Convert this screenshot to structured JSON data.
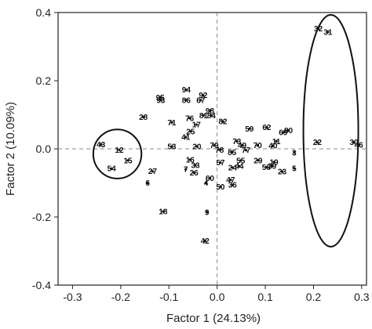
{
  "chart_data": {
    "type": "scatter",
    "title": "",
    "xlabel": "Factor 1 (24.13%)",
    "ylabel": "Factor 2 (10.09%)",
    "xlim": [
      -0.33,
      0.31
    ],
    "ylim": [
      -0.4,
      0.4
    ],
    "xticks": [
      "-0.3",
      "-0.2",
      "-0.1",
      "0.0",
      "0.1",
      "0.2",
      "0.3"
    ],
    "yticks": [
      "0.4",
      "0.2",
      "0.0",
      "-0.2",
      "-0.4"
    ],
    "grid": false,
    "reference_lines": {
      "x": 0,
      "y": 0,
      "style": "dashed"
    },
    "points": [
      {
        "label": "43",
        "x": -0.241,
        "y": 0.013
      },
      {
        "label": "12",
        "x": -0.203,
        "y": -0.003
      },
      {
        "label": "15",
        "x": -0.185,
        "y": -0.034
      },
      {
        "label": "54",
        "x": -0.219,
        "y": -0.058
      },
      {
        "label": "28",
        "x": -0.153,
        "y": 0.093
      },
      {
        "label": "95",
        "x": -0.118,
        "y": 0.151
      },
      {
        "label": "93",
        "x": -0.117,
        "y": 0.143
      },
      {
        "label": "71",
        "x": -0.094,
        "y": 0.077
      },
      {
        "label": "41",
        "x": -0.065,
        "y": 0.034
      },
      {
        "label": "53",
        "x": -0.094,
        "y": 0.007
      },
      {
        "label": "25",
        "x": -0.055,
        "y": 0.051
      },
      {
        "label": "76",
        "x": -0.057,
        "y": 0.09
      },
      {
        "label": "17",
        "x": -0.043,
        "y": 0.071
      },
      {
        "label": "94",
        "x": -0.064,
        "y": 0.173
      },
      {
        "label": "86",
        "x": -0.064,
        "y": 0.143
      },
      {
        "label": "67",
        "x": -0.034,
        "y": 0.143
      },
      {
        "label": "92",
        "x": -0.029,
        "y": 0.157
      },
      {
        "label": "81",
        "x": -0.028,
        "y": 0.098
      },
      {
        "label": "98",
        "x": -0.015,
        "y": 0.112
      },
      {
        "label": "84",
        "x": -0.012,
        "y": 0.098
      },
      {
        "label": "82",
        "x": 0.012,
        "y": 0.08
      },
      {
        "label": "20",
        "x": -0.042,
        "y": 0.007
      },
      {
        "label": "79",
        "x": -0.006,
        "y": 0.01
      },
      {
        "label": "78",
        "x": 0.005,
        "y": -0.003
      },
      {
        "label": "16",
        "x": -0.056,
        "y": -0.032
      },
      {
        "label": "33",
        "x": -0.045,
        "y": -0.048
      },
      {
        "label": "7",
        "x": -0.065,
        "y": -0.06
      },
      {
        "label": "26",
        "x": -0.048,
        "y": -0.07
      },
      {
        "label": "27",
        "x": -0.134,
        "y": -0.066
      },
      {
        "label": "6",
        "x": -0.144,
        "y": -0.1
      },
      {
        "label": "60",
        "x": -0.015,
        "y": -0.086
      },
      {
        "label": "4",
        "x": -0.023,
        "y": -0.1
      },
      {
        "label": "57",
        "x": 0.007,
        "y": -0.04
      },
      {
        "label": "18",
        "x": -0.112,
        "y": -0.184
      },
      {
        "label": "9",
        "x": -0.021,
        "y": -0.186
      },
      {
        "label": "42",
        "x": -0.025,
        "y": -0.27
      },
      {
        "label": "50",
        "x": 0.007,
        "y": -0.111
      },
      {
        "label": "36",
        "x": 0.032,
        "y": -0.106
      },
      {
        "label": "47",
        "x": 0.028,
        "y": -0.091
      },
      {
        "label": "24",
        "x": 0.032,
        "y": -0.055
      },
      {
        "label": "44",
        "x": 0.046,
        "y": -0.051
      },
      {
        "label": "55",
        "x": 0.049,
        "y": -0.034
      },
      {
        "label": "85",
        "x": 0.031,
        "y": -0.01
      },
      {
        "label": "73",
        "x": 0.041,
        "y": 0.022
      },
      {
        "label": "49",
        "x": 0.052,
        "y": 0.01
      },
      {
        "label": "77",
        "x": 0.06,
        "y": -0.004
      },
      {
        "label": "59",
        "x": 0.067,
        "y": 0.059
      },
      {
        "label": "70",
        "x": 0.084,
        "y": 0.01
      },
      {
        "label": "29",
        "x": 0.085,
        "y": -0.034
      },
      {
        "label": "62",
        "x": 0.103,
        "y": 0.063
      },
      {
        "label": "40",
        "x": 0.116,
        "y": 0.009
      },
      {
        "label": "11",
        "x": 0.123,
        "y": 0.022
      },
      {
        "label": "69",
        "x": 0.137,
        "y": 0.048
      },
      {
        "label": "80",
        "x": 0.148,
        "y": 0.054
      },
      {
        "label": "19",
        "x": 0.118,
        "y": -0.039
      },
      {
        "label": "56",
        "x": 0.102,
        "y": -0.054
      },
      {
        "label": "39",
        "x": 0.114,
        "y": -0.051
      },
      {
        "label": "23",
        "x": 0.135,
        "y": -0.067
      },
      {
        "label": "3",
        "x": 0.16,
        "y": -0.011
      },
      {
        "label": "5",
        "x": 0.16,
        "y": -0.057
      },
      {
        "label": "22",
        "x": 0.208,
        "y": 0.019
      },
      {
        "label": "30",
        "x": 0.284,
        "y": 0.019
      },
      {
        "label": "46",
        "x": 0.294,
        "y": 0.011
      },
      {
        "label": "32",
        "x": 0.21,
        "y": 0.353
      },
      {
        "label": "31",
        "x": 0.23,
        "y": 0.343
      }
    ],
    "ellipses": [
      {
        "cx": -0.207,
        "cy": -0.015,
        "rx": 0.05,
        "ry": 0.072
      },
      {
        "cx": 0.236,
        "cy": 0.053,
        "rx": 0.057,
        "ry": 0.34
      }
    ],
    "point_size": "small filled dots, many overlapping labels near origin cluster"
  }
}
